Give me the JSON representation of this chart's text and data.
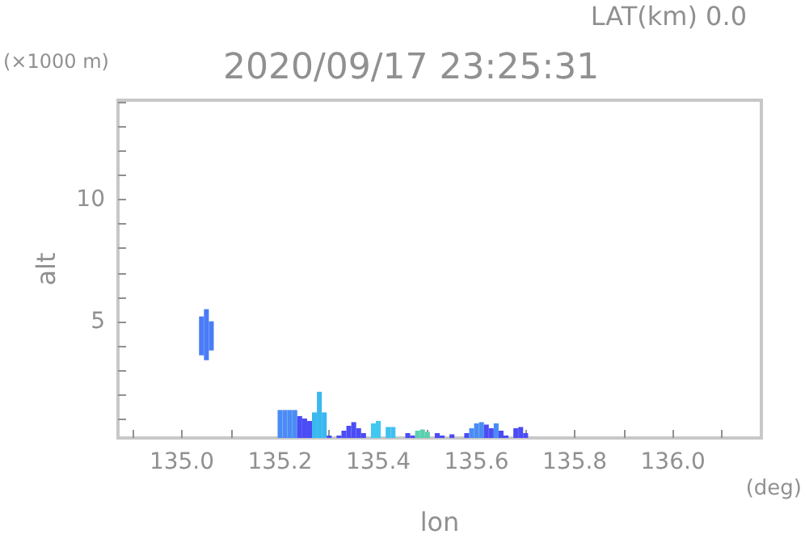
{
  "chart_data": {
    "type": "bar",
    "title": "2020/09/17 23:25:31",
    "xlabel": "lon",
    "ylabel": "alt",
    "annotations": [
      "LAT(km) 0.0",
      "(×1000 m)",
      "(deg)"
    ],
    "x": [
      135.04,
      135.05,
      135.06,
      135.2,
      135.21,
      135.22,
      135.23,
      135.24,
      135.25,
      135.26,
      135.27,
      135.28,
      135.29,
      135.3,
      135.32,
      135.33,
      135.34,
      135.35,
      135.36,
      135.37,
      135.39,
      135.4,
      135.42,
      135.43,
      135.46,
      135.47,
      135.48,
      135.49,
      135.5,
      135.52,
      135.53,
      135.55,
      135.58,
      135.59,
      135.6,
      135.61,
      135.62,
      135.63,
      135.64,
      135.65,
      135.66,
      135.68,
      135.69,
      135.7
    ],
    "base": [
      3.6,
      3.4,
      3.8,
      0,
      0,
      0,
      0,
      0,
      0,
      0,
      0,
      0,
      0,
      0,
      0,
      0,
      0,
      0,
      0,
      0,
      0,
      0,
      0,
      0,
      0,
      0,
      0,
      0,
      0,
      0,
      0,
      0,
      0,
      0,
      0,
      0,
      0,
      0,
      0,
      0,
      0,
      0,
      0,
      0
    ],
    "values": [
      1.6,
      2.1,
      1.2,
      1.35,
      1.35,
      1.35,
      1.35,
      1.1,
      1.0,
      0.9,
      1.25,
      2.1,
      1.25,
      0.3,
      0.3,
      0.5,
      0.7,
      0.85,
      0.6,
      0.4,
      0.8,
      0.9,
      0.65,
      0.65,
      0.4,
      0.3,
      0.5,
      0.55,
      0.45,
      0.4,
      0.3,
      0.35,
      0.4,
      0.6,
      0.8,
      0.85,
      0.75,
      0.6,
      0.8,
      0.5,
      0.3,
      0.6,
      0.65,
      0.4
    ],
    "colors": [
      "#4a7cf5",
      "#4a7cf5",
      "#4a7cf5",
      "#4a8cf5",
      "#4a8cf5",
      "#4a8cf5",
      "#4a8cf5",
      "#4a4cf5",
      "#4a4cf5",
      "#4a4cf5",
      "#3ab8f0",
      "#3ab8f0",
      "#3ab8f0",
      "#4a4cf5",
      "#4a4cf5",
      "#4a4cf5",
      "#4a4cf5",
      "#4a4cf5",
      "#4a4cf5",
      "#4a4cf5",
      "#40c8f0",
      "#40c8f0",
      "#40c0f0",
      "#40c0f0",
      "#4a4cf5",
      "#4a4cf5",
      "#5ad0b0",
      "#5ad0b0",
      "#5ad0b0",
      "#4a4cf5",
      "#4a4cf5",
      "#4a4cf5",
      "#4a4cf5",
      "#4a8cf5",
      "#4a8cf5",
      "#4a8cf5",
      "#4a4cf5",
      "#4a4cf5",
      "#4a8cf5",
      "#4a4cf5",
      "#4a4cf5",
      "#4a4cf5",
      "#4a4cf5",
      "#4a4cf5"
    ],
    "xlim": [
      134.87,
      136.18
    ],
    "ylim": [
      0.2,
      14.1
    ],
    "xticks": [
      {
        "value": 134.9,
        "label": null
      },
      {
        "value": 135.0,
        "label": "135.0"
      },
      {
        "value": 135.1,
        "label": null
      },
      {
        "value": 135.2,
        "label": "135.2"
      },
      {
        "value": 135.3,
        "label": null
      },
      {
        "value": 135.4,
        "label": "135.4"
      },
      {
        "value": 135.5,
        "label": null
      },
      {
        "value": 135.6,
        "label": "135.6"
      },
      {
        "value": 135.7,
        "label": null
      },
      {
        "value": 135.8,
        "label": "135.8"
      },
      {
        "value": 135.9,
        "label": null
      },
      {
        "value": 136.0,
        "label": "136.0"
      },
      {
        "value": 136.1,
        "label": null
      }
    ],
    "yticks": [
      {
        "value": 1,
        "label": null
      },
      {
        "value": 2,
        "label": null
      },
      {
        "value": 3,
        "label": null
      },
      {
        "value": 4,
        "label": null
      },
      {
        "value": 5,
        "label": "5"
      },
      {
        "value": 6,
        "label": null
      },
      {
        "value": 7,
        "label": null
      },
      {
        "value": 8,
        "label": null
      },
      {
        "value": 9,
        "label": null
      },
      {
        "value": 10,
        "label": "10"
      },
      {
        "value": 11,
        "label": null
      },
      {
        "value": 12,
        "label": null
      },
      {
        "value": 13,
        "label": null
      },
      {
        "value": 14,
        "label": null
      }
    ],
    "grid": false
  }
}
